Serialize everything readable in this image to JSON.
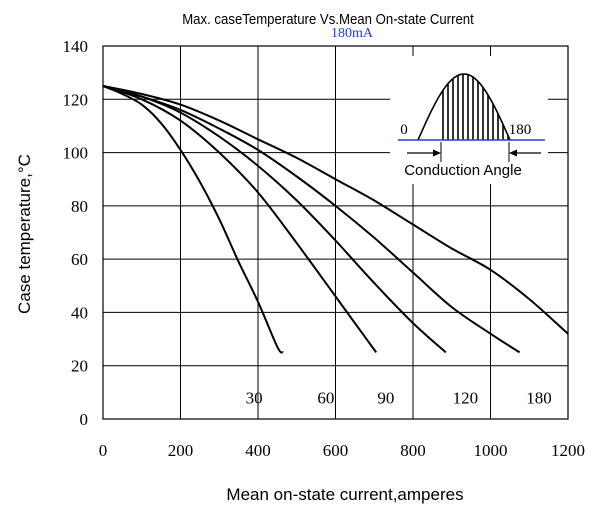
{
  "chart_data": {
    "type": "line",
    "title": "Max. caseTemperature Vs.Mean On-state Current",
    "subtitle_fragment": "180mA",
    "xlabel": "Mean on-state current,amperes",
    "ylabel": "Case temperature,°C",
    "xlim": [
      0,
      1200
    ],
    "ylim": [
      0,
      140
    ],
    "x_ticks": [
      0,
      200,
      400,
      600,
      800,
      1000,
      1200
    ],
    "y_ticks": [
      0,
      20,
      40,
      60,
      80,
      100,
      120,
      140
    ],
    "grid": true,
    "series": [
      {
        "name": "30",
        "values": [
          [
            0,
            125
          ],
          [
            50,
            122
          ],
          [
            100,
            118
          ],
          [
            150,
            111
          ],
          [
            200,
            101
          ],
          [
            250,
            89
          ],
          [
            300,
            75
          ],
          [
            350,
            59
          ],
          [
            400,
            44
          ],
          [
            450,
            27
          ],
          [
            465,
            25
          ]
        ]
      },
      {
        "name": "60",
        "values": [
          [
            0,
            125
          ],
          [
            100,
            120
          ],
          [
            200,
            112
          ],
          [
            300,
            100
          ],
          [
            400,
            85
          ],
          [
            500,
            66
          ],
          [
            600,
            46
          ],
          [
            650,
            36
          ],
          [
            705,
            25
          ]
        ]
      },
      {
        "name": "90",
        "values": [
          [
            0,
            125
          ],
          [
            100,
            121
          ],
          [
            200,
            115
          ],
          [
            300,
            106
          ],
          [
            400,
            95
          ],
          [
            500,
            82
          ],
          [
            600,
            67
          ],
          [
            700,
            51
          ],
          [
            800,
            36
          ],
          [
            885,
            25
          ]
        ]
      },
      {
        "name": "120",
        "values": [
          [
            0,
            125
          ],
          [
            100,
            121
          ],
          [
            200,
            116
          ],
          [
            300,
            109
          ],
          [
            400,
            101
          ],
          [
            500,
            91
          ],
          [
            600,
            80
          ],
          [
            700,
            68
          ],
          [
            800,
            55
          ],
          [
            900,
            42
          ],
          [
            1000,
            32
          ],
          [
            1075,
            25
          ]
        ]
      },
      {
        "name": "180",
        "values": [
          [
            0,
            125
          ],
          [
            100,
            122
          ],
          [
            200,
            118
          ],
          [
            300,
            112
          ],
          [
            400,
            105
          ],
          [
            500,
            98
          ],
          [
            600,
            90
          ],
          [
            700,
            82
          ],
          [
            800,
            73
          ],
          [
            900,
            64
          ],
          [
            1000,
            56
          ],
          [
            1100,
            45
          ],
          [
            1200,
            32
          ]
        ]
      }
    ],
    "curve_labels": [
      {
        "text": "30",
        "x": 390,
        "y": 8
      },
      {
        "text": "60",
        "x": 575,
        "y": 8
      },
      {
        "text": "90",
        "x": 730,
        "y": 8
      },
      {
        "text": "120",
        "x": 935,
        "y": 8
      },
      {
        "text": "180",
        "x": 1125,
        "y": 8
      }
    ],
    "inset": {
      "label_left": "0",
      "label_right": "180",
      "caption": "Conduction Angle"
    }
  }
}
